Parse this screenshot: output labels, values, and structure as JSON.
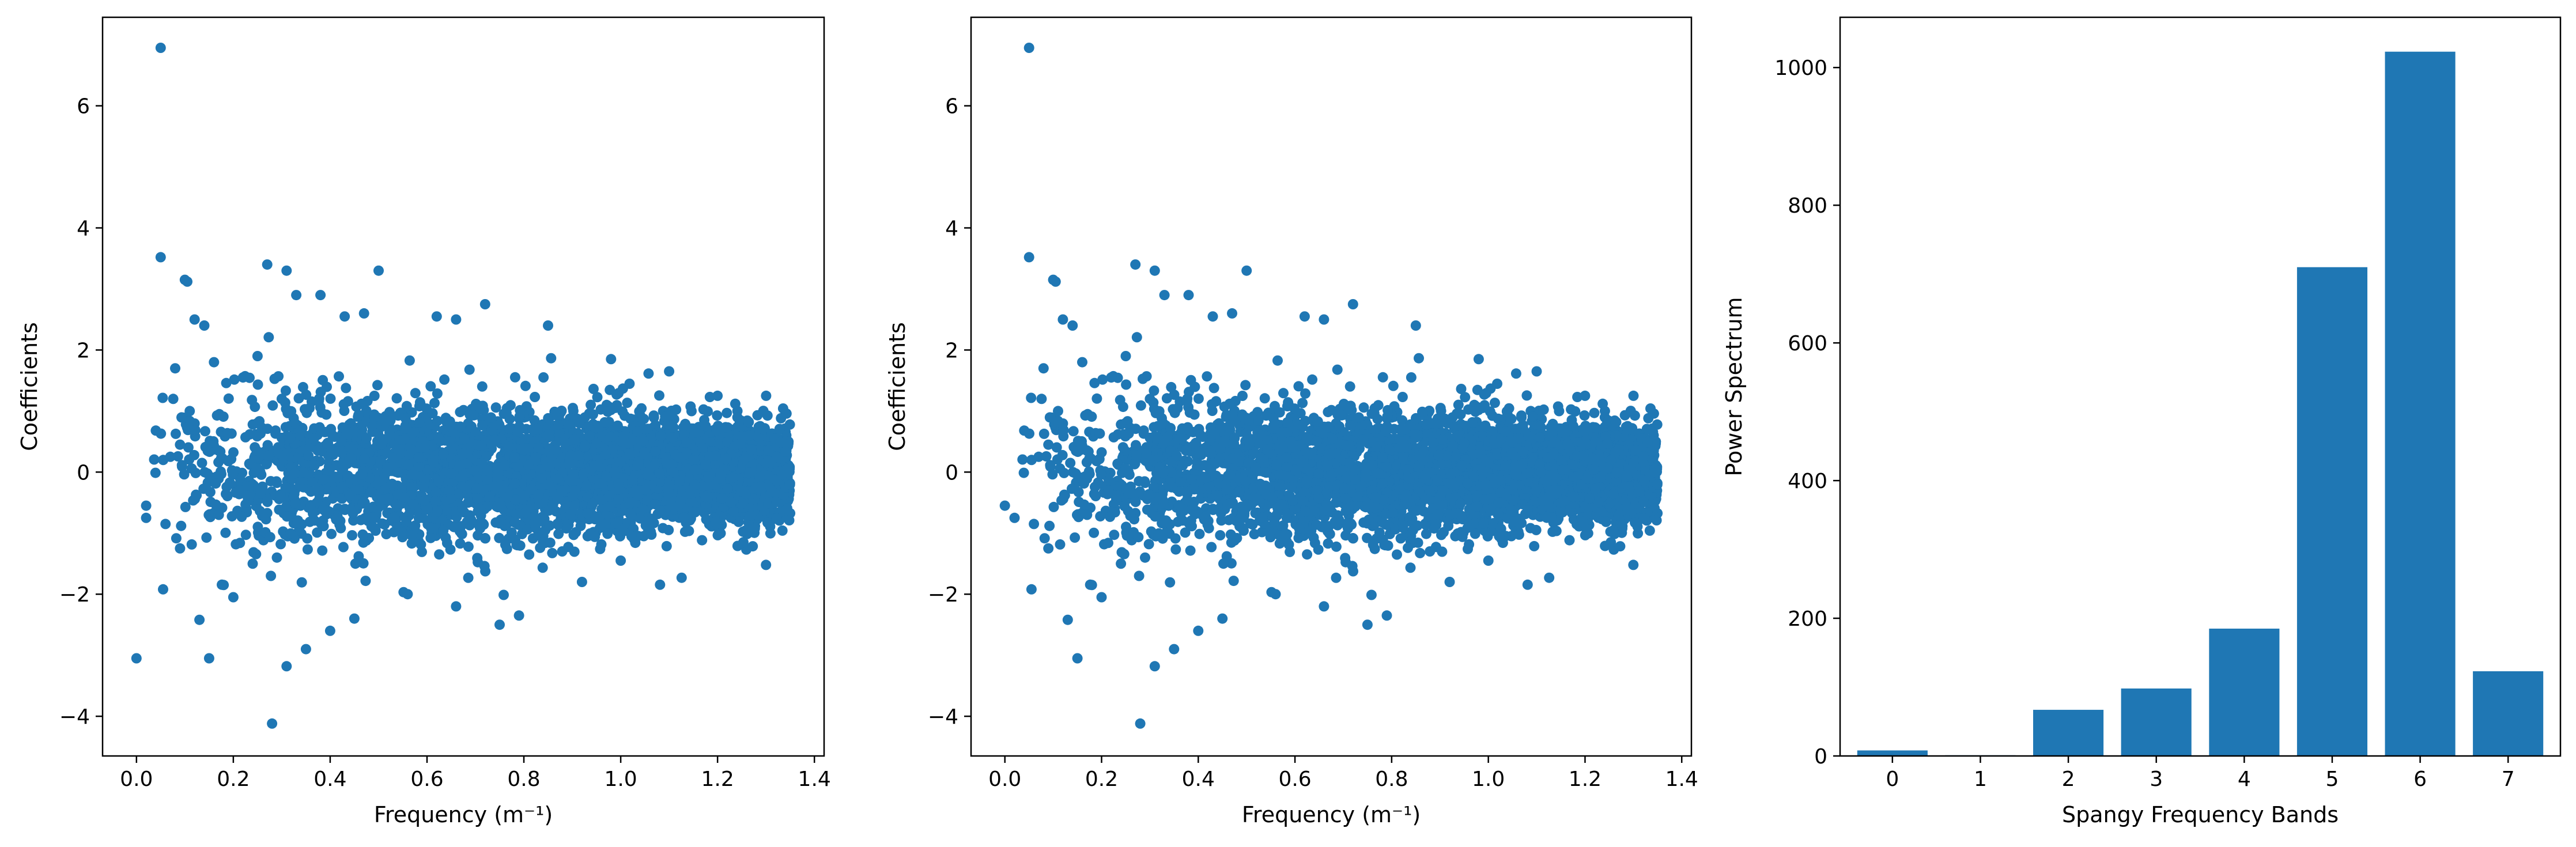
{
  "colors": {
    "accent": "#1f77b4",
    "axis": "#000000",
    "background": "#ffffff"
  },
  "chart_data": [
    {
      "type": "scatter",
      "title": "",
      "xlabel": "Frequency (m⁻¹)",
      "ylabel": "Coefficients",
      "xlim": [
        -0.07,
        1.42
      ],
      "ylim": [
        -4.65,
        7.45
      ],
      "xticks": [
        0.0,
        0.2,
        0.4,
        0.6,
        0.8,
        1.0,
        1.2,
        1.4
      ],
      "xtick_labels": [
        "0.0",
        "0.2",
        "0.4",
        "0.6",
        "0.8",
        "1.0",
        "1.2",
        "1.4"
      ],
      "yticks": [
        -4,
        -2,
        0,
        2,
        4,
        6
      ],
      "ytick_labels": [
        "−4",
        "−2",
        "0",
        "2",
        "4",
        "6"
      ],
      "points": [
        [
          0.0,
          -3.05
        ],
        [
          0.05,
          6.95
        ],
        [
          0.05,
          3.52
        ],
        [
          0.055,
          -1.92
        ],
        [
          0.04,
          0.68
        ],
        [
          0.02,
          -0.55
        ],
        [
          0.1,
          3.15
        ],
        [
          0.105,
          3.12
        ],
        [
          0.12,
          2.5
        ],
        [
          0.15,
          -3.05
        ],
        [
          0.14,
          2.4
        ],
        [
          0.13,
          -2.42
        ],
        [
          0.27,
          3.4
        ],
        [
          0.31,
          3.3
        ],
        [
          0.5,
          3.3
        ],
        [
          0.28,
          -4.12
        ],
        [
          0.31,
          -3.18
        ],
        [
          0.33,
          2.9
        ],
        [
          0.38,
          2.9
        ],
        [
          0.43,
          2.55
        ],
        [
          0.47,
          2.6
        ],
        [
          0.35,
          -2.9
        ],
        [
          0.4,
          -2.6
        ],
        [
          0.45,
          -2.4
        ],
        [
          0.72,
          2.75
        ],
        [
          0.85,
          2.4
        ],
        [
          0.62,
          2.55
        ],
        [
          0.66,
          2.5
        ],
        [
          0.75,
          -2.5
        ],
        [
          0.79,
          -2.35
        ],
        [
          0.66,
          -2.2
        ],
        [
          0.56,
          -2.0
        ],
        [
          0.92,
          -1.8
        ],
        [
          0.98,
          1.85
        ],
        [
          1.1,
          1.65
        ],
        [
          1.3,
          -1.52
        ],
        [
          1.2,
          1.25
        ],
        [
          1.0,
          -1.45
        ],
        [
          0.08,
          1.7
        ],
        [
          0.09,
          -1.25
        ],
        [
          0.06,
          -0.85
        ],
        [
          0.02,
          -0.75
        ],
        [
          0.18,
          -1.85
        ],
        [
          0.2,
          -2.05
        ],
        [
          0.22,
          1.55
        ],
        [
          0.25,
          1.9
        ],
        [
          0.16,
          1.8
        ],
        [
          0.11,
          1.0
        ],
        [
          0.07,
          0.25
        ],
        [
          0.09,
          0.45
        ],
        [
          0.17,
          -0.7
        ],
        [
          0.24,
          -1.5
        ],
        [
          0.3,
          1.2
        ],
        [
          0.29,
          -1.4
        ]
      ],
      "band_description": "dense cloud, envelope narrowing from about ±2.5 at low frequency to about ±1 at 1.35"
    },
    {
      "type": "scatter",
      "title": "",
      "xlabel": "Frequency (m⁻¹)",
      "ylabel": "Coefficients",
      "xlim": [
        -0.07,
        1.42
      ],
      "ylim": [
        -4.65,
        7.45
      ],
      "xticks": [
        0.0,
        0.2,
        0.4,
        0.6,
        0.8,
        1.0,
        1.2,
        1.4
      ],
      "xtick_labels": [
        "0.0",
        "0.2",
        "0.4",
        "0.6",
        "0.8",
        "1.0",
        "1.2",
        "1.4"
      ],
      "yticks": [
        -4,
        -2,
        0,
        2,
        4,
        6
      ],
      "ytick_labels": [
        "−4",
        "−2",
        "0",
        "2",
        "4",
        "6"
      ],
      "points": [
        [
          0.0,
          -0.55
        ],
        [
          0.05,
          6.95
        ],
        [
          0.05,
          3.52
        ],
        [
          0.055,
          -1.92
        ],
        [
          0.04,
          0.68
        ],
        [
          0.02,
          -0.75
        ],
        [
          0.1,
          3.15
        ],
        [
          0.105,
          3.12
        ],
        [
          0.12,
          2.5
        ],
        [
          0.15,
          -3.05
        ],
        [
          0.14,
          2.4
        ],
        [
          0.13,
          -2.42
        ],
        [
          0.27,
          3.4
        ],
        [
          0.31,
          3.3
        ],
        [
          0.5,
          3.3
        ],
        [
          0.28,
          -4.12
        ],
        [
          0.31,
          -3.18
        ],
        [
          0.33,
          2.9
        ],
        [
          0.38,
          2.9
        ],
        [
          0.43,
          2.55
        ],
        [
          0.47,
          2.6
        ],
        [
          0.35,
          -2.9
        ],
        [
          0.4,
          -2.6
        ],
        [
          0.45,
          -2.4
        ],
        [
          0.72,
          2.75
        ],
        [
          0.85,
          2.4
        ],
        [
          0.62,
          2.55
        ],
        [
          0.66,
          2.5
        ],
        [
          0.75,
          -2.5
        ],
        [
          0.79,
          -2.35
        ],
        [
          0.66,
          -2.2
        ],
        [
          0.56,
          -2.0
        ],
        [
          0.92,
          -1.8
        ],
        [
          0.98,
          1.85
        ],
        [
          1.1,
          1.65
        ],
        [
          1.3,
          -1.52
        ],
        [
          1.2,
          1.25
        ],
        [
          1.0,
          -1.45
        ],
        [
          0.08,
          1.7
        ],
        [
          0.09,
          -1.25
        ],
        [
          0.06,
          -0.85
        ],
        [
          0.22,
          1.55
        ],
        [
          0.18,
          -1.85
        ],
        [
          0.2,
          -2.05
        ],
        [
          0.25,
          1.9
        ],
        [
          0.16,
          1.8
        ],
        [
          0.11,
          1.0
        ],
        [
          0.07,
          0.25
        ],
        [
          0.09,
          0.45
        ],
        [
          0.17,
          -0.7
        ],
        [
          0.24,
          -1.5
        ],
        [
          0.3,
          1.2
        ],
        [
          0.29,
          -1.4
        ]
      ],
      "band_description": "same distribution as the first panel, without the lowest point at x=0"
    },
    {
      "type": "bar",
      "title": "",
      "xlabel": "Spangy Frequency Bands",
      "ylabel": "Power Spectrum",
      "categories": [
        "0",
        "1",
        "2",
        "3",
        "4",
        "5",
        "6",
        "7"
      ],
      "values": [
        8,
        1,
        67,
        98,
        185,
        710,
        1023,
        123
      ],
      "ylim": [
        0,
        1073
      ],
      "yticks": [
        0,
        200,
        400,
        600,
        800,
        1000
      ],
      "ytick_labels": [
        "0",
        "200",
        "400",
        "600",
        "800",
        "1000"
      ]
    }
  ]
}
